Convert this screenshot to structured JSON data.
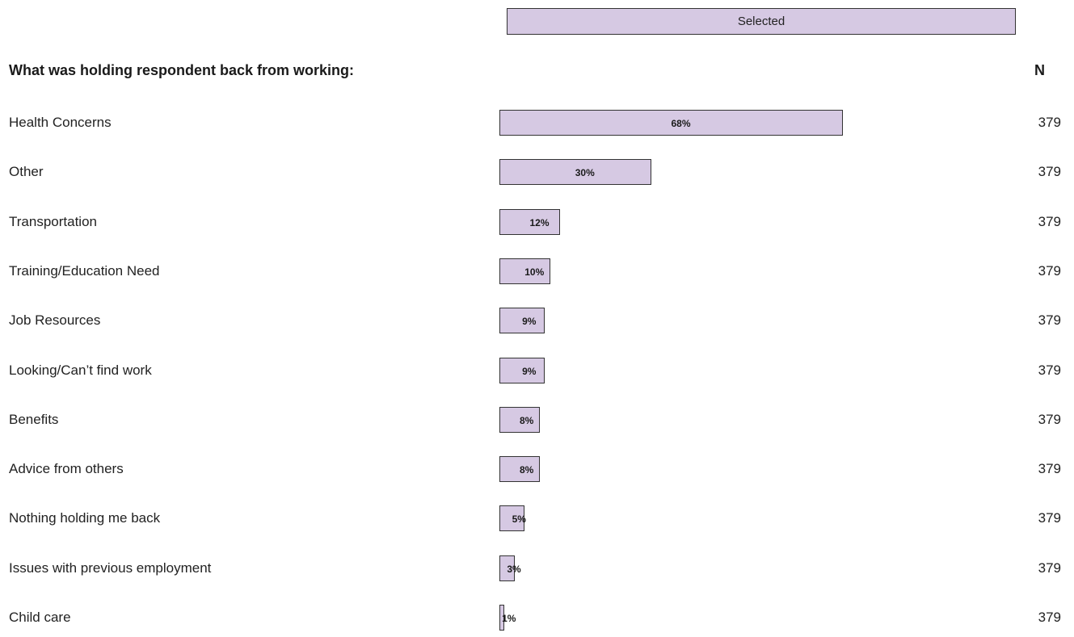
{
  "legend": {
    "label": "Selected"
  },
  "colors": {
    "bar_fill": "#d6c9e3",
    "bar_border": "#333333"
  },
  "chart_data": {
    "type": "bar",
    "orientation": "horizontal",
    "title": "What was holding respondent back from working:",
    "n_header": "N",
    "unit": "%",
    "xlim": [
      0,
      100
    ],
    "series": [
      {
        "name": "Selected",
        "values": [
          68,
          30,
          12,
          10,
          9,
          9,
          8,
          8,
          5,
          3,
          1
        ]
      }
    ],
    "categories": [
      "Health Concerns",
      "Other",
      "Transportation",
      "Training/Education Need",
      "Job Resources",
      "Looking/Can’t find work",
      "Benefits",
      "Advice from others",
      "Nothing holding me back",
      "Issues with previous employment",
      "Child care"
    ],
    "value_labels": [
      "68%",
      "30%",
      "12%",
      "10%",
      "9%",
      "9%",
      "8%",
      "8%",
      "5%",
      "3%",
      "1%"
    ],
    "n_values": [
      "379",
      "379",
      "379",
      "379",
      "379",
      "379",
      "379",
      "379",
      "379",
      "379",
      "379"
    ]
  }
}
